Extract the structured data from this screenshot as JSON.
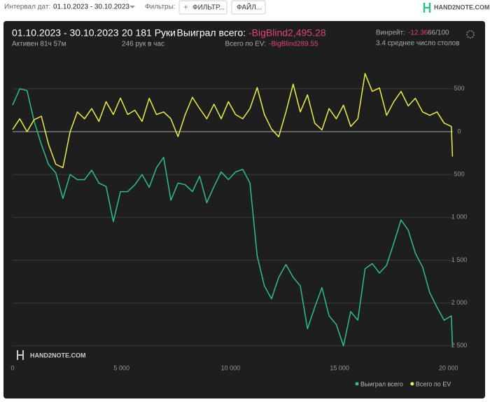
{
  "toolbar": {
    "date_label": "Интервал дат:",
    "date_range": "01.10.2023 - 30.10.2023",
    "filters_label": "Фильтры:",
    "filter_button": "ФИЛЬТР...",
    "file_button": "ФАЙЛ...",
    "logo": "HAND2NOTE.COM"
  },
  "stats": {
    "period": "01.10.2023 - 30.10.2023",
    "active": "Активен 81ч 57м",
    "hands": "20 181 Руки",
    "hands_per_hour": "246 рук в час",
    "won_label": "Выиграл всего:",
    "won_value": "-BigBlind2,495.28",
    "ev_label": "Всего по EV:",
    "ev_value": "-BigBlind289.55",
    "winrate_label": "Винрейт:",
    "winrate_value": "-12.36",
    "winrate_unit": "66/100",
    "tables": "3.4 среднее число столов"
  },
  "chart_data": {
    "type": "line",
    "watermark": "HAND2NOTE.COM",
    "x": [
      0,
      330,
      660,
      990,
      1320,
      1650,
      1980,
      2310,
      2640,
      2970,
      3300,
      3630,
      3960,
      4290,
      4620,
      4950,
      5280,
      5610,
      5940,
      6270,
      6600,
      6930,
      7260,
      7590,
      7920,
      8250,
      8580,
      8910,
      9240,
      9570,
      9900,
      10230,
      10560,
      10890,
      11220,
      11550,
      11880,
      12210,
      12540,
      12870,
      13200,
      13530,
      13860,
      14190,
      14520,
      14850,
      15180,
      15510,
      15840,
      16170,
      16500,
      16830,
      17160,
      17490,
      17820,
      18150,
      18480,
      18810,
      19140,
      19470,
      19800,
      20130,
      20181
    ],
    "series": [
      {
        "name": "Выиграл всего",
        "color": "#2fbf8a",
        "values": [
          310,
          500,
          480,
          120,
          -150,
          -384,
          -480,
          -780,
          -500,
          -560,
          -560,
          -450,
          -600,
          -640,
          -1050,
          -700,
          -700,
          -620,
          -500,
          -650,
          -420,
          -300,
          -800,
          -600,
          -620,
          -700,
          -520,
          -830,
          -640,
          -470,
          -560,
          -470,
          -440,
          -600,
          -1450,
          -1800,
          -1950,
          -1700,
          -1550,
          -1700,
          -1800,
          -2300,
          -2050,
          -1820,
          -2150,
          -2250,
          -2500,
          -2100,
          -2200,
          -1600,
          -1540,
          -1650,
          -1560,
          -1300,
          -1030,
          -1150,
          -1420,
          -1580,
          -1880,
          -2050,
          -2200,
          -2150,
          -2495
        ]
      },
      {
        "name": "Всего по EV",
        "color": "#eeee4a",
        "values": [
          25,
          150,
          0,
          140,
          180,
          -150,
          -380,
          -420,
          0,
          230,
          150,
          270,
          120,
          350,
          200,
          392,
          200,
          250,
          120,
          390,
          200,
          230,
          150,
          -57,
          200,
          400,
          270,
          150,
          320,
          150,
          350,
          200,
          150,
          270,
          515,
          200,
          30,
          -60,
          230,
          555,
          230,
          430,
          100,
          20,
          270,
          150,
          310,
          60,
          150,
          678,
          470,
          510,
          190,
          350,
          470,
          300,
          390,
          230,
          190,
          230,
          100,
          60,
          -290
        ]
      }
    ],
    "xlim": [
      0,
      20200
    ],
    "ylim": [
      -2640,
      760
    ],
    "xticks": [
      0,
      {
        "value": 5000,
        "label": "5 000"
      },
      {
        "value": 10000,
        "label": "10 000"
      },
      {
        "value": 15000,
        "label": "15 000"
      },
      {
        "value": 20000,
        "label": "20 000"
      }
    ],
    "yticks": [
      500,
      0,
      {
        "value": -500,
        "label": "500"
      },
      {
        "value": -1000,
        "label": "1 000"
      },
      {
        "value": -1500,
        "label": "1 500"
      },
      {
        "value": -2000,
        "label": "2 000"
      },
      {
        "value": -2500,
        "label": "2 500"
      }
    ],
    "grid": true
  }
}
